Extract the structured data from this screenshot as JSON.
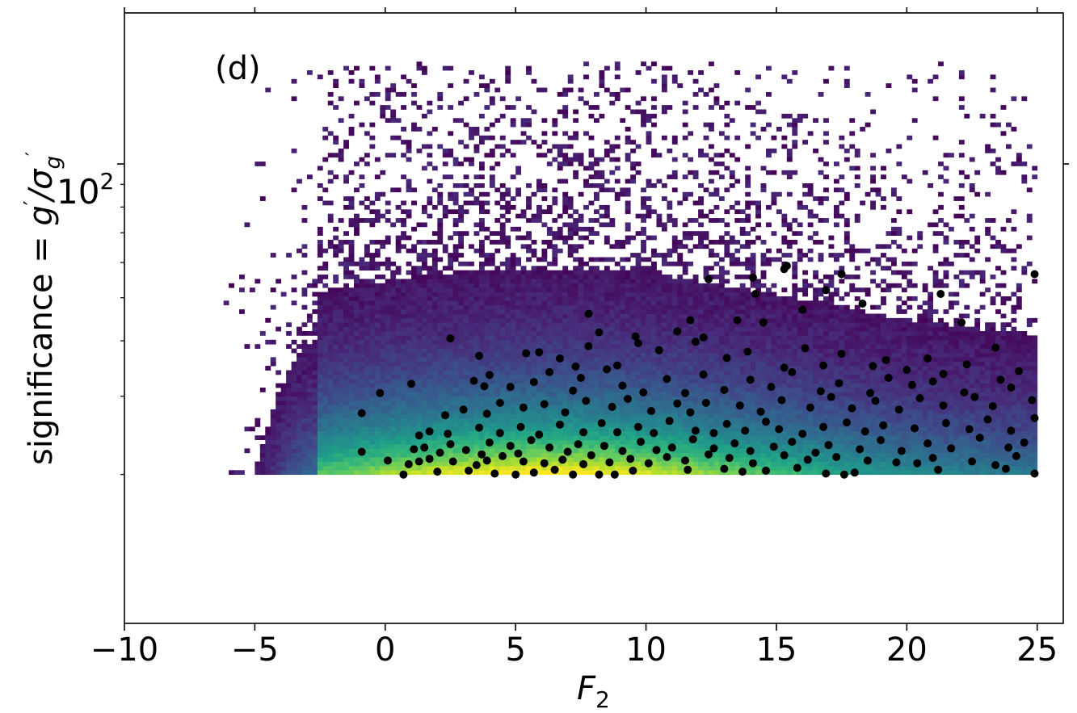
{
  "chart_data": {
    "type": "heatmap",
    "panel_label": "(d)",
    "xlabel": "F",
    "xlabel_sub": "2",
    "ylabel_main": "significance = ",
    "ylabel_g": "g",
    "ylabel_sep": "/σ",
    "ylabel_sub": "g",
    "ylabel_prime": "′",
    "xlim": [
      -10,
      26
    ],
    "ylim_log10": [
      0.966,
      2.34
    ],
    "yscale": "log",
    "xticks": [
      -10,
      -5,
      0,
      5,
      10,
      15,
      20,
      25
    ],
    "xtick_labels": [
      "−10",
      "−5",
      "0",
      "5",
      "10",
      "15",
      "20",
      "25"
    ],
    "ytick_major": {
      "value": 100,
      "label_base": "10",
      "label_exp": "2"
    },
    "ytick_minor": [
      20,
      30,
      40,
      50,
      60,
      70,
      80,
      90
    ],
    "grid": false,
    "colormap": "viridis",
    "density": {
      "x_range": [
        -9.0,
        25.0
      ],
      "y_range": [
        20,
        170
      ],
      "peak": {
        "x": 6,
        "y": 20
      }
    },
    "points": [
      [
        0.7,
        20
      ],
      [
        2.0,
        20.3
      ],
      [
        3.2,
        20.4
      ],
      [
        4.2,
        20.1
      ],
      [
        5.0,
        20.0
      ],
      [
        5.7,
        20.2
      ],
      [
        6.5,
        20.5
      ],
      [
        7.2,
        20.0
      ],
      [
        8.2,
        20.0
      ],
      [
        8.8,
        20.0
      ],
      [
        9.5,
        20.4
      ],
      [
        11.6,
        20.5
      ],
      [
        13.0,
        20.6
      ],
      [
        13.7,
        20.3
      ],
      [
        14.6,
        20.4
      ],
      [
        15.8,
        20.7
      ],
      [
        16.9,
        20.1
      ],
      [
        17.6,
        20.0
      ],
      [
        18.0,
        20.2
      ],
      [
        21.2,
        20.5
      ],
      [
        23.8,
        20.6
      ],
      [
        24.9,
        20.1
      ],
      [
        0.1,
        21.5
      ],
      [
        0.9,
        21.1
      ],
      [
        1.3,
        21.4
      ],
      [
        1.7,
        21.7
      ],
      [
        2.6,
        21.4
      ],
      [
        3.5,
        21.0
      ],
      [
        3.9,
        21.5
      ],
      [
        4.5,
        22.0
      ],
      [
        5.3,
        21.4
      ],
      [
        6.1,
        21.2
      ],
      [
        6.8,
        21.6
      ],
      [
        7.6,
        21.1
      ],
      [
        8.6,
        21.3
      ],
      [
        9.4,
        21.7
      ],
      [
        10.1,
        21.2
      ],
      [
        10.8,
        21.9
      ],
      [
        11.5,
        21.5
      ],
      [
        12.4,
        22.2
      ],
      [
        13.2,
        21.8
      ],
      [
        14.1,
        21.2
      ],
      [
        15.3,
        22.1
      ],
      [
        16.2,
        21.6
      ],
      [
        17.3,
        21.9
      ],
      [
        18.5,
        21.5
      ],
      [
        19.6,
        21.3
      ],
      [
        20.4,
        21.2
      ],
      [
        21.0,
        21.8
      ],
      [
        22.5,
        21.4
      ],
      [
        23.4,
        21.0
      ],
      [
        24.2,
        22.0
      ],
      [
        -0.9,
        22.5
      ],
      [
        1.1,
        22.8
      ],
      [
        1.5,
        23.0
      ],
      [
        2.1,
        22.4
      ],
      [
        2.5,
        23.4
      ],
      [
        3.1,
        22.7
      ],
      [
        3.7,
        22.2
      ],
      [
        4.0,
        23.6
      ],
      [
        4.8,
        23.2
      ],
      [
        5.1,
        22.3
      ],
      [
        5.6,
        23.9
      ],
      [
        6.3,
        23.0
      ],
      [
        7.0,
        22.5
      ],
      [
        7.4,
        23.4
      ],
      [
        7.9,
        22.1
      ],
      [
        8.4,
        23.2
      ],
      [
        9.1,
        22.6
      ],
      [
        9.8,
        23.7
      ],
      [
        10.4,
        22.7
      ],
      [
        11.0,
        23.0
      ],
      [
        11.8,
        24.0
      ],
      [
        12.6,
        22.9
      ],
      [
        13.4,
        23.5
      ],
      [
        14.0,
        22.6
      ],
      [
        14.9,
        23.1
      ],
      [
        15.6,
        23.7
      ],
      [
        16.5,
        22.4
      ],
      [
        17.0,
        23.3
      ],
      [
        18.2,
        22.8
      ],
      [
        19.0,
        23.9
      ],
      [
        19.8,
        22.6
      ],
      [
        20.8,
        23.5
      ],
      [
        21.7,
        22.9
      ],
      [
        22.8,
        24.2
      ],
      [
        23.9,
        23.0
      ],
      [
        24.5,
        23.6
      ],
      [
        1.3,
        24.5
      ],
      [
        1.7,
        25.0
      ],
      [
        2.4,
        24.7
      ],
      [
        3.6,
        25.5
      ],
      [
        4.4,
        24.8
      ],
      [
        5.2,
        25.6
      ],
      [
        5.9,
        24.6
      ],
      [
        6.7,
        25.9
      ],
      [
        7.6,
        24.9
      ],
      [
        8.3,
        26.1
      ],
      [
        8.9,
        24.9
      ],
      [
        9.7,
        25.6
      ],
      [
        10.3,
        24.8
      ],
      [
        10.9,
        26.4
      ],
      [
        11.9,
        25.1
      ],
      [
        12.6,
        24.8
      ],
      [
        13.1,
        26.0
      ],
      [
        13.8,
        25.1
      ],
      [
        14.6,
        26.3
      ],
      [
        15.1,
        25.3
      ],
      [
        16.0,
        24.7
      ],
      [
        16.8,
        25.6
      ],
      [
        17.7,
        26.2
      ],
      [
        18.4,
        25.0
      ],
      [
        19.1,
        25.8
      ],
      [
        20.3,
        25.4
      ],
      [
        21.5,
        26.1
      ],
      [
        22.4,
        25.3
      ],
      [
        23.1,
        26.6
      ],
      [
        24.0,
        25.1
      ],
      [
        24.9,
        26.8
      ],
      [
        -0.9,
        27.5
      ],
      [
        2.3,
        27.2
      ],
      [
        3.0,
        28.0
      ],
      [
        3.9,
        27.4
      ],
      [
        4.4,
        29.0
      ],
      [
        5.3,
        28.3
      ],
      [
        6.1,
        28.8
      ],
      [
        6.9,
        27.6
      ],
      [
        7.7,
        29.3
      ],
      [
        8.7,
        28.4
      ],
      [
        9.3,
        29.6
      ],
      [
        10.2,
        27.8
      ],
      [
        11.2,
        28.9
      ],
      [
        11.7,
        27.6
      ],
      [
        12.3,
        29.0
      ],
      [
        13.6,
        28.6
      ],
      [
        14.4,
        27.7
      ],
      [
        15.2,
        29.4
      ],
      [
        16.3,
        28.3
      ],
      [
        17.1,
        29.9
      ],
      [
        17.9,
        28.2
      ],
      [
        18.8,
        29.3
      ],
      [
        19.7,
        28.0
      ],
      [
        20.5,
        29.7
      ],
      [
        21.4,
        28.6
      ],
      [
        22.6,
        29.9
      ],
      [
        23.3,
        28.5
      ],
      [
        24.8,
        29.4
      ],
      [
        -0.2,
        30.5
      ],
      [
        1.0,
        32.0
      ],
      [
        3.4,
        32.5
      ],
      [
        3.8,
        31.6
      ],
      [
        4.0,
        33.5
      ],
      [
        4.8,
        31.5
      ],
      [
        5.7,
        32.3
      ],
      [
        6.3,
        34.0
      ],
      [
        7.2,
        30.9
      ],
      [
        7.5,
        33.0
      ],
      [
        8.5,
        34.5
      ],
      [
        9.1,
        31.7
      ],
      [
        9.9,
        30.6
      ],
      [
        10.8,
        32.8
      ],
      [
        11.5,
        30.5
      ],
      [
        12.2,
        33.6
      ],
      [
        13.0,
        31.0
      ],
      [
        14.0,
        32.7
      ],
      [
        14.8,
        31.5
      ],
      [
        15.6,
        34.0
      ],
      [
        16.7,
        30.8
      ],
      [
        17.4,
        32.1
      ],
      [
        18.6,
        30.5
      ],
      [
        19.3,
        33.0
      ],
      [
        20.2,
        31.8
      ],
      [
        21.0,
        32.4
      ],
      [
        22.2,
        30.6
      ],
      [
        23.6,
        32.7
      ],
      [
        24.0,
        31.4
      ],
      [
        2.5,
        40.5
      ],
      [
        3.6,
        37.0
      ],
      [
        5.4,
        37.5
      ],
      [
        5.9,
        37.7
      ],
      [
        6.7,
        36.5
      ],
      [
        7.3,
        35.0
      ],
      [
        7.8,
        38.9
      ],
      [
        8.9,
        35.2
      ],
      [
        9.7,
        39.5
      ],
      [
        10.5,
        38.1
      ],
      [
        11.2,
        42.0
      ],
      [
        11.9,
        39.8
      ],
      [
        12.2,
        40.7
      ],
      [
        13.1,
        36.6
      ],
      [
        13.9,
        37.8
      ],
      [
        14.5,
        44.0
      ],
      [
        15.3,
        34.8
      ],
      [
        16.1,
        38.5
      ],
      [
        16.8,
        35.2
      ],
      [
        17.5,
        37.4
      ],
      [
        18.7,
        35.1
      ],
      [
        19.2,
        36.2
      ],
      [
        20.0,
        34.4
      ],
      [
        20.8,
        36.5
      ],
      [
        21.4,
        33.7
      ],
      [
        22.3,
        35.4
      ],
      [
        23.4,
        38.6
      ],
      [
        24.3,
        34.2
      ],
      [
        7.8,
        46.0
      ],
      [
        8.2,
        41.8
      ],
      [
        9.6,
        40.9
      ],
      [
        11.7,
        44.5
      ],
      [
        14.1,
        55.5
      ],
      [
        14.2,
        51.0
      ],
      [
        15.3,
        58.0
      ],
      [
        16.9,
        52.0
      ],
      [
        18.3,
        48.5
      ],
      [
        21.3,
        51.0
      ],
      [
        24.9,
        56.5
      ],
      [
        12.4,
        55.0
      ],
      [
        15.4,
        59.0
      ],
      [
        17.5,
        56.5
      ],
      [
        13.5,
        44.5
      ],
      [
        16.0,
        47.0
      ],
      [
        22.1,
        44.0
      ]
    ]
  }
}
